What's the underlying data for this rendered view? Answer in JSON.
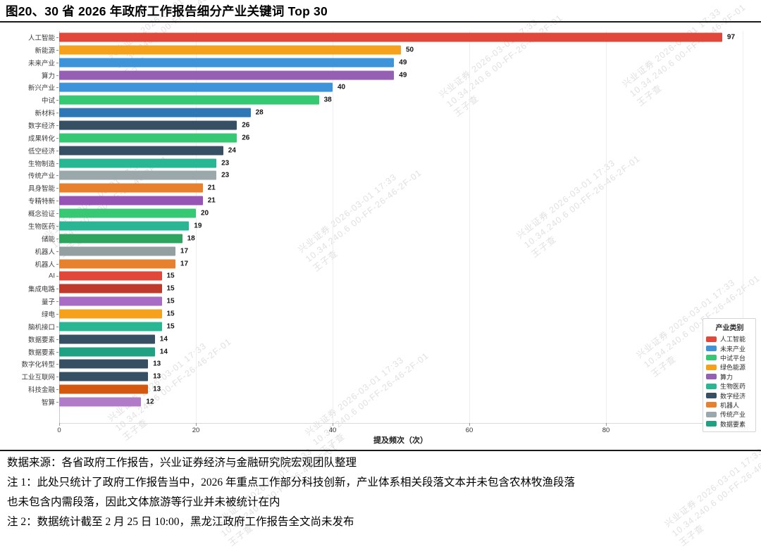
{
  "title": "图20、30 省 2026 年政府工作报告细分产业关键词 Top 30",
  "chart_data": {
    "type": "bar",
    "orientation": "horizontal",
    "title": "图20、30 省 2026 年政府工作报告细分产业关键词 Top 30",
    "xlabel": "提及频次（次）",
    "ylabel": "",
    "xlim": [
      0,
      100
    ],
    "xticks": [
      0,
      20,
      40,
      60,
      80,
      100
    ],
    "grid": "vertical-faint",
    "bars": [
      {
        "label": "人工智能",
        "value": 97,
        "color": "#e2483a"
      },
      {
        "label": "新能源",
        "value": 50,
        "color": "#f5a11c"
      },
      {
        "label": "未来产业",
        "value": 49,
        "color": "#3d94d9"
      },
      {
        "label": "算力",
        "value": 49,
        "color": "#9560b4"
      },
      {
        "label": "新兴产业",
        "value": 40,
        "color": "#3d94d9"
      },
      {
        "label": "中试",
        "value": 38,
        "color": "#36c873"
      },
      {
        "label": "新材料",
        "value": 28,
        "color": "#2d78b5"
      },
      {
        "label": "数字经济",
        "value": 26,
        "color": "#374f63"
      },
      {
        "label": "成果转化",
        "value": 26,
        "color": "#36c873"
      },
      {
        "label": "低空经济",
        "value": 24,
        "color": "#374f63"
      },
      {
        "label": "生物制造",
        "value": 23,
        "color": "#29b793"
      },
      {
        "label": "传统产业",
        "value": 23,
        "color": "#9aa8ab"
      },
      {
        "label": "具身智能",
        "value": 21,
        "color": "#e8812d"
      },
      {
        "label": "专精特新",
        "value": 21,
        "color": "#9655b5"
      },
      {
        "label": "概念验证",
        "value": 20,
        "color": "#36c873"
      },
      {
        "label": "生物医药",
        "value": 19,
        "color": "#29b793"
      },
      {
        "label": "储能",
        "value": 18,
        "color": "#2ea55e"
      },
      {
        "label": "机器人",
        "value": 17,
        "color": "#939fa1"
      },
      {
        "label": "机器人",
        "value": 17,
        "color": "#e8812d"
      },
      {
        "label": "AI",
        "value": 15,
        "color": "#e2483a"
      },
      {
        "label": "集成电路",
        "value": 15,
        "color": "#c03a2b"
      },
      {
        "label": "量子",
        "value": 15,
        "color": "#a86cc4"
      },
      {
        "label": "绿电",
        "value": 15,
        "color": "#f5a11c"
      },
      {
        "label": "脑机接口",
        "value": 15,
        "color": "#29b793"
      },
      {
        "label": "数据要素",
        "value": 14,
        "color": "#374f63"
      },
      {
        "label": "数据要素",
        "value": 14,
        "color": "#21a183"
      },
      {
        "label": "数字化转型",
        "value": 13,
        "color": "#374f63"
      },
      {
        "label": "工业互联网",
        "value": 13,
        "color": "#374f63"
      },
      {
        "label": "科技金融",
        "value": 13,
        "color": "#d4590f"
      },
      {
        "label": "智算",
        "value": 12,
        "color": "#b07cc8"
      }
    ],
    "legend": {
      "title": "产业类别",
      "position": "right-bottom",
      "items": [
        {
          "label": "人工智能",
          "color": "#e2483a"
        },
        {
          "label": "未来产业",
          "color": "#3d94d9"
        },
        {
          "label": "中试平台",
          "color": "#36c873"
        },
        {
          "label": "绿色能源",
          "color": "#f5a11c"
        },
        {
          "label": "算力",
          "color": "#9560b4"
        },
        {
          "label": "生物医药",
          "color": "#29b793"
        },
        {
          "label": "数字经济",
          "color": "#374f63"
        },
        {
          "label": "机器人",
          "color": "#e8812d"
        },
        {
          "label": "传统产业",
          "color": "#9aa8ab"
        },
        {
          "label": "数据要素",
          "color": "#21a183"
        }
      ]
    }
  },
  "footer": {
    "lines": [
      "数据来源：各省政府工作报告，兴业证券经济与金融研究院宏观团队整理",
      "注 1：此处只统计了政府工作报告当中，2026 年重点工作部分科技创新，产业体系相关段落文本并未包含农林牧渔段落",
      "也未包含内需段落，因此文体旅游等行业并未被统计在内",
      "注 2：数据统计截至 2 月 25 日 10:00，黑龙江政府工作报告全文尚未发布"
    ]
  },
  "watermark": {
    "lines": [
      "兴业证券 2026-03-01 17:33",
      "10.34.240.6 00-FF-26-46-2F-01",
      "王子查"
    ]
  }
}
